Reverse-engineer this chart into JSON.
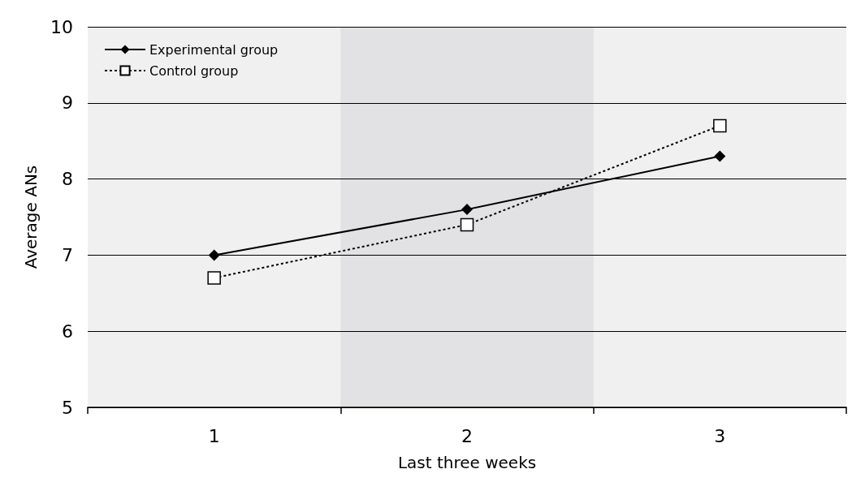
{
  "chart_data": {
    "type": "line",
    "xlabel": "Last three weeks",
    "ylabel": "Average ANs",
    "categories": [
      "1",
      "2",
      "3"
    ],
    "series": [
      {
        "name": "Experimental group",
        "color": "#000000",
        "values": [
          7.0,
          7.6,
          8.3
        ],
        "marker": "diamond",
        "line_style": "solid"
      },
      {
        "name": "Control group",
        "color": "#000000",
        "values": [
          6.7,
          7.4,
          8.7
        ],
        "marker": "square",
        "line_style": "dotted"
      }
    ],
    "ylim": [
      5,
      10
    ],
    "yticks": [
      5,
      6,
      7,
      8,
      9,
      10
    ],
    "grid": "y",
    "legend": "top left",
    "bands": [
      {
        "axis": "x",
        "from": "2",
        "to": "2",
        "color": "#e2e2e4"
      }
    ]
  }
}
